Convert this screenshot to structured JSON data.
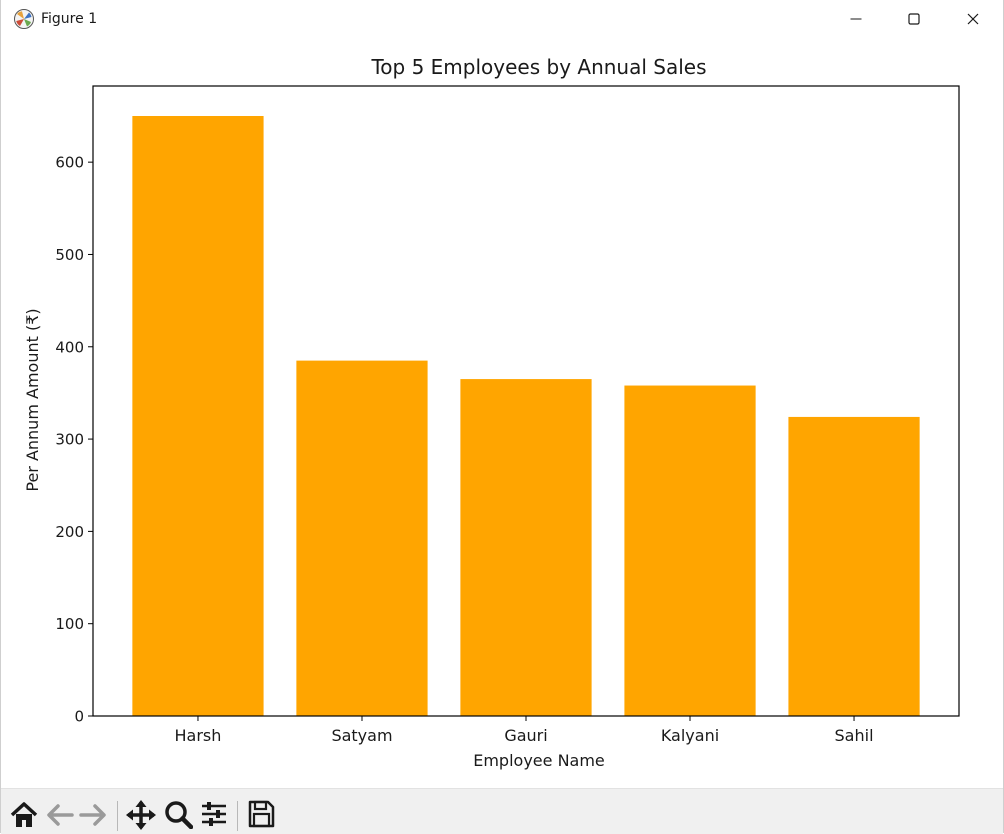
{
  "window": {
    "title": "Figure 1",
    "icons": [
      "matplotlib-icon",
      "minimize-icon",
      "maximize-icon",
      "close-icon"
    ]
  },
  "toolbar": {
    "items": [
      {
        "name": "home-button",
        "icon": "home-icon"
      },
      {
        "name": "back-button",
        "icon": "back-arrow-icon"
      },
      {
        "name": "forward-button",
        "icon": "forward-arrow-icon"
      },
      {
        "name": "pan-button",
        "icon": "move-icon"
      },
      {
        "name": "zoom-button",
        "icon": "zoom-icon"
      },
      {
        "name": "configure-subplots-button",
        "icon": "sliders-icon"
      },
      {
        "name": "save-button",
        "icon": "save-icon"
      }
    ]
  },
  "chart_data": {
    "type": "bar",
    "title": "Top 5 Employees by Annual Sales",
    "xlabel": "Employee Name",
    "ylabel": "Per Annum Amount (₹)",
    "categories": [
      "Harsh",
      "Satyam",
      "Gauri",
      "Kalyani",
      "Sahil"
    ],
    "values": [
      650,
      385,
      365,
      358,
      324
    ],
    "ylim": [
      0,
      682.5
    ],
    "yticks": [
      0,
      100,
      200,
      300,
      400,
      500,
      600
    ],
    "bar_color": "#ffa500",
    "grid": false,
    "legend": "none"
  }
}
